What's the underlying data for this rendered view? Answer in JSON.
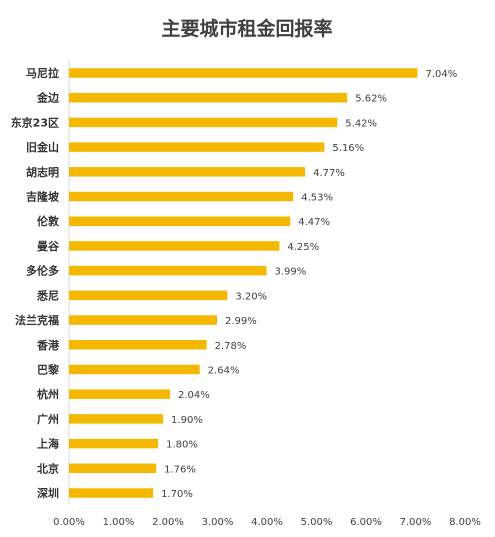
{
  "chart_data": {
    "type": "bar",
    "orientation": "horizontal",
    "title": "主要城市租金回报率",
    "xlabel": "",
    "ylabel": "",
    "categories": [
      "马尼拉",
      "金边",
      "东京23区",
      "旧金山",
      "胡志明",
      "吉隆坡",
      "伦敦",
      "曼谷",
      "多伦多",
      "悉尼",
      "法兰克福",
      "香港",
      "巴黎",
      "杭州",
      "广州",
      "上海",
      "北京",
      "深圳"
    ],
    "values": [
      7.04,
      5.62,
      5.42,
      5.16,
      4.77,
      4.53,
      4.47,
      4.25,
      3.99,
      3.2,
      2.99,
      2.78,
      2.64,
      2.04,
      1.9,
      1.8,
      1.76,
      1.7
    ],
    "value_labels": [
      "7.04%",
      "5.62%",
      "5.42%",
      "5.16%",
      "4.77%",
      "4.53%",
      "4.47%",
      "4.25%",
      "3.99%",
      "3.20%",
      "2.99%",
      "2.78%",
      "2.64%",
      "2.04%",
      "1.90%",
      "1.80%",
      "1.76%",
      "1.70%"
    ],
    "xlim": [
      0,
      8
    ],
    "xticks": [
      "0.00%",
      "1.00%",
      "2.00%",
      "3.00%",
      "4.00%",
      "5.00%",
      "6.00%",
      "7.00%",
      "8.00%"
    ],
    "grid": false,
    "legend": "none",
    "bar_color": "#F5B800"
  }
}
